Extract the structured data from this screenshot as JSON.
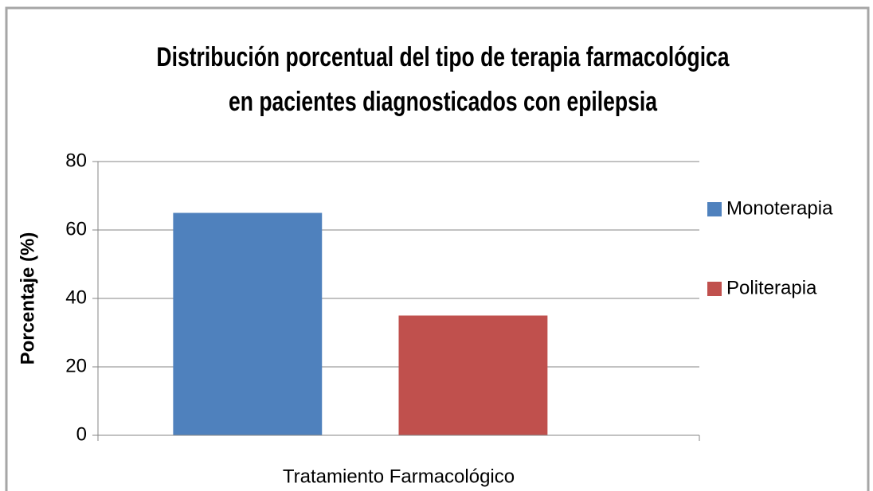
{
  "chart_data": {
    "type": "bar",
    "title": "Distribución porcentual del tipo de terapia farmacológica en pacientes diagnosticados con epilepsia",
    "categories": [
      "Tratamiento Farmacológico"
    ],
    "series": [
      {
        "name": "Monoterapia",
        "color": "#4f81bd",
        "values": [
          65
        ]
      },
      {
        "name": "Politerapia",
        "color": "#c0504d",
        "values": [
          35
        ]
      }
    ],
    "ylabel": "Porcentaje (%)",
    "ylim": [
      0,
      80
    ],
    "yticks": [
      0,
      20,
      40,
      60,
      80
    ],
    "grid": true,
    "legend": "right"
  }
}
